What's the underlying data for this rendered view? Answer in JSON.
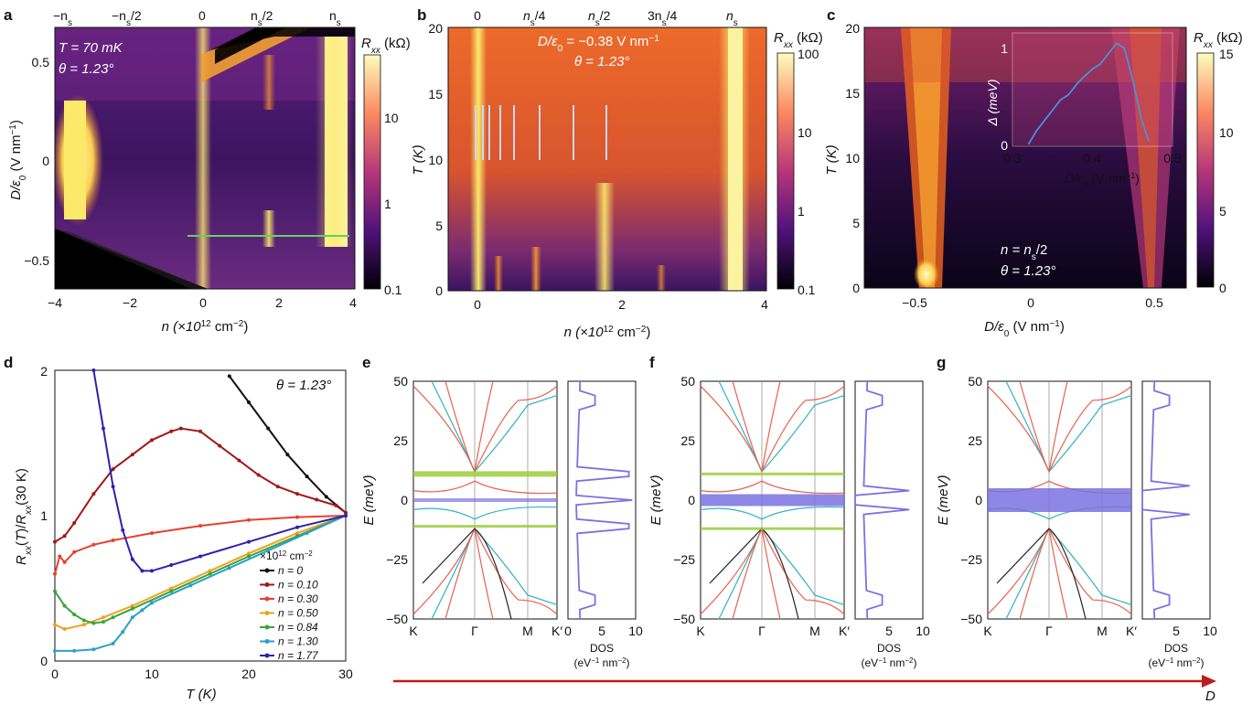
{
  "panels": {
    "a": "a",
    "b": "b",
    "c": "c",
    "d": "d",
    "e": "e",
    "f": "f",
    "g": "g"
  },
  "panel_a": {
    "top_labels": [
      "−n",
      "−n",
      "/2",
      "0",
      "n",
      "/2",
      "n"
    ],
    "top_sub": "s",
    "ann_T": "T = 70 mK",
    "ann_theta": "θ = 1.23°",
    "x_ticks": [
      "−4",
      "−2",
      "0",
      "2",
      "4"
    ],
    "y_ticks": [
      "0.5",
      "0",
      "−0.5"
    ],
    "xlabel": "n (×10",
    "xlabel_exp": "12",
    "xlabel_tail": " cm",
    "xlabel_exp2": "−2",
    "xlabel_end": ")",
    "ylabel": "D/ε",
    "ylabel_sub": "0",
    "ylabel_tail": " (V nm",
    "ylabel_exp": "−1",
    "ylabel_end": ")",
    "cbar_title": "R",
    "cbar_sub": "xx",
    "cbar_unit": " (kΩ)",
    "cbar_ticks": [
      "10",
      "1",
      "0.1"
    ]
  },
  "panel_b": {
    "top_labels": [
      "0",
      "n",
      "/4",
      "n",
      "/2",
      "3n",
      "/4",
      "n"
    ],
    "top_sub": "s",
    "ann_D": "D/ε",
    "ann_D_sub": "0",
    "ann_D_tail": " = −0.38 V nm",
    "ann_D_exp": "−1",
    "ann_theta": "θ = 1.23°",
    "x_ticks": [
      "0",
      "2",
      "4"
    ],
    "y_ticks": [
      "20",
      "15",
      "10",
      "5",
      "0"
    ],
    "ylabel": "T (K)",
    "cbar_title": "R",
    "cbar_sub": "xx",
    "cbar_unit": " (kΩ)",
    "cbar_ticks": [
      "100",
      "10",
      "1",
      "0.1"
    ]
  },
  "panel_c": {
    "x_ticks": [
      "−0.5",
      "0",
      "0.5"
    ],
    "y_ticks": [
      "20",
      "15",
      "10",
      "5",
      "0"
    ],
    "ylabel": "T (K)",
    "xlabel": "D/ε",
    "xlabel_sub": "0",
    "xlabel_tail": " (V nm",
    "xlabel_exp": "−1",
    "xlabel_end": ")",
    "ann_n": "n = n",
    "ann_n_sub": "s",
    "ann_n_tail": "/2",
    "ann_theta": "θ = 1.23°",
    "cbar_title": "R",
    "cbar_sub": "xx",
    "cbar_unit": " (kΩ)",
    "cbar_ticks": [
      "15",
      "10",
      "5",
      "0"
    ],
    "inset_ylabel": "Δ (meV)",
    "inset_x_ticks": [
      "0.3",
      "0.4",
      "0.5"
    ],
    "inset_y_ticks": [
      "1",
      "0"
    ]
  },
  "panel_d": {
    "theta": "θ = 1.23°",
    "x_ticks": [
      "0",
      "10",
      "20",
      "30"
    ],
    "y_ticks": [
      "2",
      "1",
      "0"
    ],
    "xlabel": "T (K)",
    "ylabel": "R",
    "legend_unit": "×10",
    "legend_unit_exp": "12",
    "legend_unit_tail": " cm",
    "legend_unit_exp2": "−2"
  },
  "band_panels": {
    "x_ticks": [
      "K",
      "Γ",
      "M",
      "K′"
    ],
    "y_ticks": [
      "50",
      "25",
      "0",
      "−25",
      "−50"
    ],
    "ylabel": "E (meV)",
    "dos_ticks": [
      "0",
      "5",
      "10"
    ],
    "dos_ticks_short": [
      "5",
      "10"
    ],
    "dos_label": "DOS",
    "dos_unit": "(eV",
    "dos_unit_exp": "−1",
    "dos_unit_tail": " nm",
    "dos_unit_exp2": "−2",
    "dos_unit_end": ")"
  },
  "arrow_label": "D",
  "colors": {
    "inferno_dark": "#120a2e",
    "inferno_purple": "#5a1d7a",
    "inferno_orange": "#e8621f",
    "inferno_yellow": "#fbe96a",
    "band_red": "#e8604c",
    "band_cyan": "#2fb2c4",
    "band_black": "#222222",
    "flat_green": "#9bcc3a",
    "gap_purple": "#7a72e0",
    "arrow_red": "#c01b1b"
  },
  "chart_data": [
    {
      "panel": "d",
      "type": "line",
      "xlabel": "T (K)",
      "ylabel": "Rxx(T)/Rxx(30 K)",
      "xlim": [
        0,
        30
      ],
      "ylim": [
        0,
        2
      ],
      "legend_placement": "lower-right",
      "series": [
        {
          "name": "n = 0",
          "color": "#111111",
          "x": [
            18,
            20,
            22,
            24,
            26,
            28,
            30
          ],
          "y": [
            1.96,
            1.78,
            1.6,
            1.42,
            1.27,
            1.13,
            1.02
          ]
        },
        {
          "name": "n = 0.10",
          "color": "#a01818",
          "x": [
            0,
            1,
            2,
            4,
            6,
            8,
            10,
            12,
            13,
            15,
            17,
            19,
            21,
            23,
            25,
            27,
            29,
            30
          ],
          "y": [
            0.82,
            0.86,
            0.95,
            1.15,
            1.32,
            1.42,
            1.52,
            1.58,
            1.6,
            1.58,
            1.48,
            1.38,
            1.28,
            1.2,
            1.15,
            1.11,
            1.07,
            1.02
          ]
        },
        {
          "name": "n = 0.30",
          "color": "#e8402c",
          "x": [
            0,
            0.5,
            1,
            2,
            4,
            6,
            10,
            15,
            20,
            25,
            30
          ],
          "y": [
            0.6,
            0.72,
            0.68,
            0.75,
            0.8,
            0.83,
            0.88,
            0.93,
            0.97,
            0.99,
            1.0
          ]
        },
        {
          "name": "n = 0.50",
          "color": "#f0a020",
          "x": [
            0,
            1,
            3,
            5,
            8,
            12,
            16,
            20,
            25,
            30
          ],
          "y": [
            0.25,
            0.22,
            0.25,
            0.3,
            0.38,
            0.5,
            0.62,
            0.74,
            0.88,
            1.0
          ]
        },
        {
          "name": "n = 0.84",
          "color": "#3aa53a",
          "x": [
            0,
            1,
            2,
            3,
            4,
            5,
            6,
            8,
            12,
            16,
            20,
            25,
            30
          ],
          "y": [
            0.48,
            0.38,
            0.32,
            0.28,
            0.26,
            0.27,
            0.3,
            0.36,
            0.48,
            0.6,
            0.72,
            0.86,
            1.0
          ]
        },
        {
          "name": "n = 1.30",
          "color": "#2aa0c8",
          "x": [
            0,
            2,
            4,
            6,
            7,
            8,
            9,
            10,
            14,
            18,
            22,
            26,
            30
          ],
          "y": [
            0.07,
            0.07,
            0.08,
            0.12,
            0.2,
            0.3,
            0.35,
            0.4,
            0.52,
            0.64,
            0.76,
            0.88,
            1.0
          ]
        },
        {
          "name": "n = 1.77",
          "color": "#3020b0",
          "x": [
            4,
            5,
            6,
            7,
            8,
            9,
            10,
            12,
            15,
            20,
            25,
            30
          ],
          "y": [
            2.0,
            1.6,
            1.2,
            0.9,
            0.7,
            0.62,
            0.62,
            0.66,
            0.72,
            0.82,
            0.92,
            1.0
          ]
        }
      ]
    },
    {
      "panel": "c-inset",
      "type": "line",
      "ylabel": "Δ (meV)",
      "xlim": [
        0.3,
        0.5
      ],
      "ylim": [
        0,
        1.1
      ],
      "series": [
        {
          "color": "#4a8fe0",
          "x": [
            0.32,
            0.33,
            0.34,
            0.35,
            0.36,
            0.37,
            0.38,
            0.39,
            0.4,
            0.41,
            0.42,
            0.43,
            0.44,
            0.45,
            0.46,
            0.47
          ],
          "y": [
            0.02,
            0.15,
            0.25,
            0.35,
            0.45,
            0.5,
            0.6,
            0.68,
            0.75,
            0.8,
            0.9,
            1.0,
            0.95,
            0.65,
            0.3,
            0.05
          ]
        }
      ]
    }
  ]
}
